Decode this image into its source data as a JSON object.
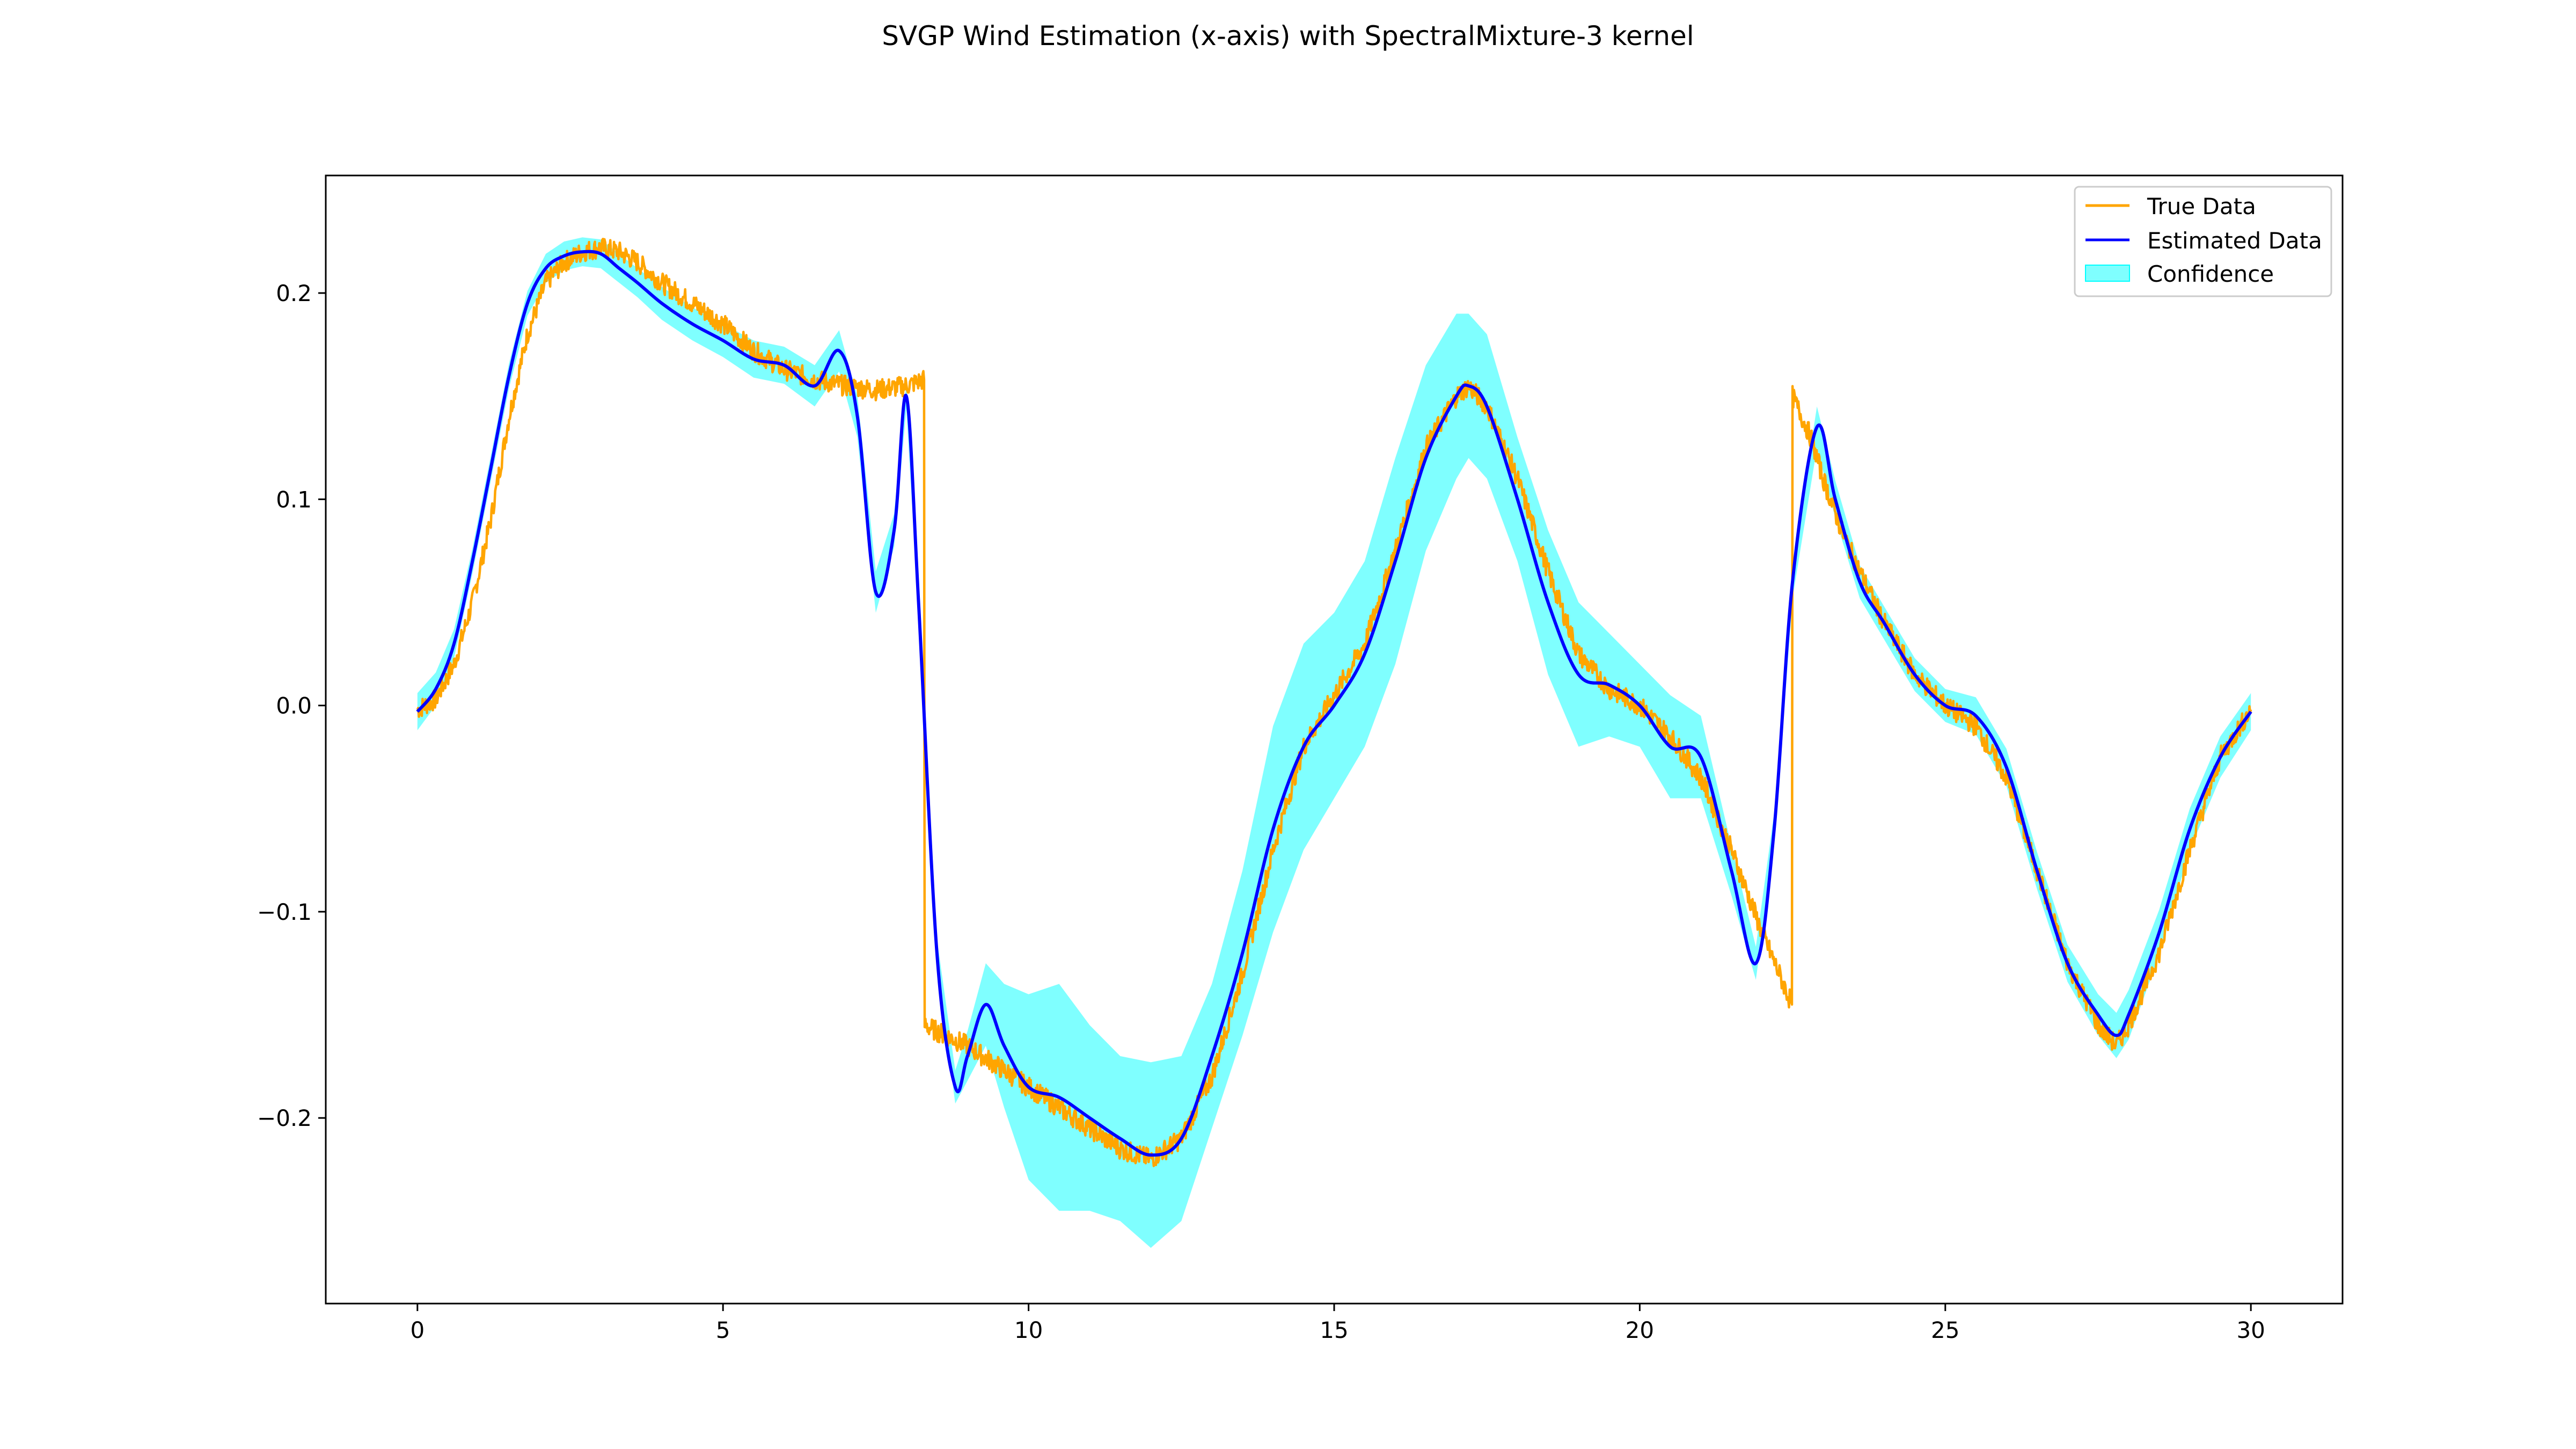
{
  "chart_data": {
    "type": "line",
    "title": "SVGP Wind Estimation (x-axis) with SpectralMixture-3 kernel",
    "xlabel": "",
    "ylabel": "",
    "xlim": [
      -1.5,
      31.5
    ],
    "ylim": [
      -0.29,
      0.257
    ],
    "xticks": [
      0,
      5,
      10,
      15,
      20,
      25,
      30
    ],
    "yticks": [
      -0.2,
      -0.1,
      0.0,
      0.1,
      0.2
    ],
    "xtick_labels": [
      "0",
      "5",
      "10",
      "15",
      "20",
      "25",
      "30"
    ],
    "ytick_labels": [
      "−0.2",
      "−0.1",
      "0.0",
      "0.1",
      "0.2"
    ],
    "grid": false,
    "legend_placement": "top-right",
    "series": [
      {
        "name": "True Data",
        "kind": "line",
        "color": "#ffa500",
        "noise": 0.005,
        "x": [
          0,
          0.3,
          0.6,
          0.9,
          1.2,
          1.5,
          1.8,
          2.1,
          2.4,
          2.7,
          3.0,
          3.3,
          3.6,
          4.0,
          4.5,
          5.0,
          5.5,
          6.0,
          6.5,
          7.0,
          7.5,
          8.0,
          8.29,
          8.3,
          8.5,
          9.0,
          9.5,
          10.0,
          10.5,
          11.0,
          11.5,
          12.0,
          12.5,
          13.0,
          13.5,
          14.0,
          14.5,
          15.0,
          15.5,
          16.0,
          16.5,
          17.0,
          17.2,
          17.5,
          18.0,
          18.5,
          19.0,
          19.5,
          20.0,
          20.5,
          21.0,
          21.5,
          22.0,
          22.49,
          22.5,
          22.8,
          23.0,
          23.3,
          23.6,
          24.0,
          24.5,
          25.0,
          25.5,
          26.0,
          26.5,
          27.0,
          27.5,
          27.8,
          28.0,
          28.5,
          29.0,
          29.5,
          30.0
        ],
        "y": [
          -0.002,
          0.003,
          0.02,
          0.05,
          0.09,
          0.14,
          0.18,
          0.205,
          0.215,
          0.22,
          0.222,
          0.22,
          0.215,
          0.205,
          0.195,
          0.185,
          0.172,
          0.163,
          0.158,
          0.155,
          0.153,
          0.155,
          0.158,
          -0.155,
          -0.158,
          -0.165,
          -0.175,
          -0.185,
          -0.195,
          -0.205,
          -0.215,
          -0.22,
          -0.21,
          -0.18,
          -0.13,
          -0.07,
          -0.02,
          0.005,
          0.03,
          0.075,
          0.125,
          0.15,
          0.155,
          0.145,
          0.11,
          0.065,
          0.025,
          0.008,
          0.0,
          -0.015,
          -0.035,
          -0.07,
          -0.11,
          -0.145,
          0.15,
          0.13,
          0.11,
          0.085,
          0.065,
          0.04,
          0.015,
          0.0,
          -0.01,
          -0.035,
          -0.08,
          -0.125,
          -0.155,
          -0.165,
          -0.155,
          -0.12,
          -0.07,
          -0.025,
          -0.002
        ]
      },
      {
        "name": "Estimated Data",
        "kind": "line",
        "color": "#0000ff",
        "x": [
          0,
          0.3,
          0.6,
          0.9,
          1.2,
          1.5,
          1.8,
          2.1,
          2.4,
          2.7,
          3.0,
          3.3,
          3.6,
          4.0,
          4.5,
          5.0,
          5.5,
          6.0,
          6.5,
          6.9,
          7.2,
          7.5,
          7.8,
          8.0,
          8.2,
          8.5,
          8.8,
          9.0,
          9.3,
          9.6,
          10.0,
          10.5,
          11.0,
          11.5,
          12.0,
          12.5,
          13.0,
          13.5,
          14.0,
          14.5,
          15.0,
          15.5,
          16.0,
          16.5,
          17.0,
          17.2,
          17.5,
          18.0,
          18.5,
          19.0,
          19.5,
          20.0,
          20.5,
          21.0,
          21.5,
          21.9,
          22.2,
          22.5,
          22.9,
          23.2,
          23.6,
          24.0,
          24.5,
          25.0,
          25.5,
          26.0,
          26.5,
          27.0,
          27.5,
          27.8,
          28.0,
          28.5,
          29.0,
          29.5,
          30.0
        ],
        "y": [
          -0.003,
          0.008,
          0.03,
          0.07,
          0.115,
          0.16,
          0.195,
          0.212,
          0.218,
          0.22,
          0.219,
          0.212,
          0.205,
          0.195,
          0.185,
          0.177,
          0.168,
          0.165,
          0.155,
          0.172,
          0.14,
          0.055,
          0.085,
          0.15,
          0.05,
          -0.12,
          -0.185,
          -0.17,
          -0.145,
          -0.165,
          -0.185,
          -0.19,
          -0.2,
          -0.21,
          -0.218,
          -0.21,
          -0.17,
          -0.12,
          -0.06,
          -0.02,
          0.0,
          0.025,
          0.07,
          0.12,
          0.15,
          0.155,
          0.145,
          0.1,
          0.05,
          0.015,
          0.01,
          0.0,
          -0.02,
          -0.025,
          -0.08,
          -0.125,
          -0.06,
          0.06,
          0.135,
          0.1,
          0.06,
          0.04,
          0.015,
          0.0,
          -0.005,
          -0.03,
          -0.08,
          -0.125,
          -0.15,
          -0.16,
          -0.15,
          -0.11,
          -0.06,
          -0.025,
          -0.003
        ]
      },
      {
        "name": "Confidence",
        "kind": "band",
        "color": "#00ffff",
        "x": [
          0,
          0.3,
          0.6,
          0.9,
          1.2,
          1.5,
          1.8,
          2.1,
          2.4,
          2.7,
          3.0,
          3.3,
          3.6,
          4.0,
          4.5,
          5.0,
          5.5,
          6.0,
          6.5,
          6.9,
          7.2,
          7.5,
          7.8,
          8.0,
          8.2,
          8.5,
          8.8,
          9.0,
          9.3,
          9.6,
          10.0,
          10.5,
          11.0,
          11.5,
          12.0,
          12.5,
          13.0,
          13.5,
          14.0,
          14.5,
          15.0,
          15.5,
          16.0,
          16.5,
          17.0,
          17.2,
          17.5,
          18.0,
          18.5,
          19.0,
          19.5,
          20.0,
          20.5,
          21.0,
          21.5,
          21.9,
          22.2,
          22.5,
          22.9,
          23.2,
          23.6,
          24.0,
          24.5,
          25.0,
          25.5,
          26.0,
          26.5,
          27.0,
          27.5,
          27.8,
          28.0,
          28.5,
          29.0,
          29.5,
          30.0
        ],
        "halfwidth": [
          0.009,
          0.008,
          0.007,
          0.006,
          0.006,
          0.006,
          0.006,
          0.007,
          0.007,
          0.007,
          0.007,
          0.007,
          0.007,
          0.008,
          0.008,
          0.008,
          0.009,
          0.009,
          0.01,
          0.01,
          0.01,
          0.01,
          0.008,
          0.006,
          0.006,
          0.007,
          0.008,
          0.012,
          0.02,
          0.03,
          0.045,
          0.055,
          0.045,
          0.04,
          0.045,
          0.04,
          0.035,
          0.04,
          0.05,
          0.05,
          0.045,
          0.045,
          0.05,
          0.045,
          0.04,
          0.035,
          0.035,
          0.03,
          0.035,
          0.035,
          0.025,
          0.02,
          0.025,
          0.02,
          0.012,
          0.008,
          0.008,
          0.008,
          0.01,
          0.009,
          0.008,
          0.008,
          0.008,
          0.008,
          0.009,
          0.009,
          0.009,
          0.009,
          0.01,
          0.011,
          0.012,
          0.011,
          0.01,
          0.01,
          0.009
        ]
      }
    ]
  }
}
